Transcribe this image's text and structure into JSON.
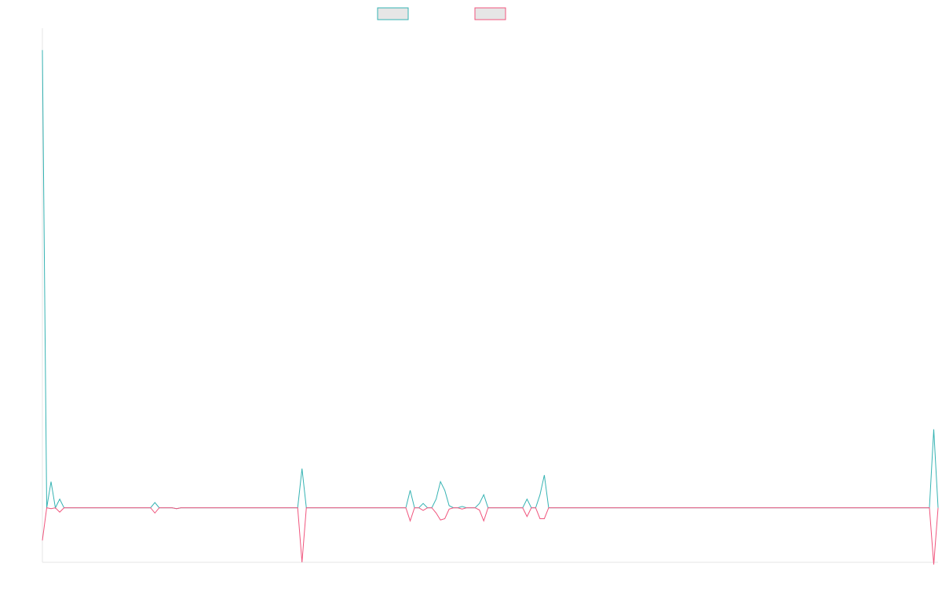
{
  "chart_data": {
    "type": "line",
    "title": "",
    "xlabel": "",
    "ylabel": "",
    "x_count": 208,
    "ylim": [
      -12.5,
      110
    ],
    "baseline": 0,
    "grid": false,
    "legend": "top-center",
    "series": [
      {
        "color": "#36b3b3",
        "peaks": [
          {
            "x": 0,
            "y": 105
          },
          {
            "x": 1,
            "y": 0
          },
          {
            "x": 2,
            "y": 6
          },
          {
            "x": 3,
            "y": 0
          },
          {
            "x": 4,
            "y": 2
          },
          {
            "x": 5,
            "y": 0
          },
          {
            "x": 26,
            "y": 1.2
          },
          {
            "x": 27,
            "y": 0
          },
          {
            "x": 31,
            "y": -0.2
          },
          {
            "x": 32,
            "y": 0
          },
          {
            "x": 60,
            "y": 9
          },
          {
            "x": 61,
            "y": 0
          },
          {
            "x": 84,
            "y": 0
          },
          {
            "x": 85,
            "y": 4
          },
          {
            "x": 86,
            "y": 0
          },
          {
            "x": 88,
            "y": 1
          },
          {
            "x": 89,
            "y": 0
          },
          {
            "x": 91,
            "y": 2
          },
          {
            "x": 92,
            "y": 6
          },
          {
            "x": 93,
            "y": 4
          },
          {
            "x": 94,
            "y": 0.5
          },
          {
            "x": 95,
            "y": 0
          },
          {
            "x": 97,
            "y": 0.3
          },
          {
            "x": 98,
            "y": 0
          },
          {
            "x": 101,
            "y": 1
          },
          {
            "x": 102,
            "y": 3
          },
          {
            "x": 103,
            "y": 0
          },
          {
            "x": 112,
            "y": 2
          },
          {
            "x": 113,
            "y": 0
          },
          {
            "x": 115,
            "y": 3
          },
          {
            "x": 116,
            "y": 7.5
          },
          {
            "x": 117,
            "y": 0
          },
          {
            "x": 206,
            "y": 18
          },
          {
            "x": 207,
            "y": 0
          }
        ]
      },
      {
        "color": "#f0557d",
        "peaks": [
          {
            "x": 0,
            "y": -7.5
          },
          {
            "x": 1,
            "y": 0
          },
          {
            "x": 2,
            "y": -0.2
          },
          {
            "x": 3,
            "y": 0
          },
          {
            "x": 4,
            "y": -1
          },
          {
            "x": 5,
            "y": 0
          },
          {
            "x": 26,
            "y": -1.2
          },
          {
            "x": 27,
            "y": 0
          },
          {
            "x": 31,
            "y": -0.2
          },
          {
            "x": 32,
            "y": 0
          },
          {
            "x": 60,
            "y": -12.5
          },
          {
            "x": 61,
            "y": 0
          },
          {
            "x": 84,
            "y": 0
          },
          {
            "x": 85,
            "y": -3
          },
          {
            "x": 86,
            "y": 0
          },
          {
            "x": 88,
            "y": -0.6
          },
          {
            "x": 89,
            "y": 0
          },
          {
            "x": 91,
            "y": -1.2
          },
          {
            "x": 92,
            "y": -2.8
          },
          {
            "x": 93,
            "y": -2.5
          },
          {
            "x": 94,
            "y": -0.3
          },
          {
            "x": 95,
            "y": 0
          },
          {
            "x": 97,
            "y": -0.3
          },
          {
            "x": 98,
            "y": 0
          },
          {
            "x": 101,
            "y": -0.5
          },
          {
            "x": 102,
            "y": -3
          },
          {
            "x": 103,
            "y": 0
          },
          {
            "x": 112,
            "y": -2
          },
          {
            "x": 113,
            "y": 0
          },
          {
            "x": 115,
            "y": -2.5
          },
          {
            "x": 116,
            "y": -2.5
          },
          {
            "x": 117,
            "y": 0
          },
          {
            "x": 206,
            "y": -13
          },
          {
            "x": 207,
            "y": 0
          }
        ]
      }
    ]
  }
}
